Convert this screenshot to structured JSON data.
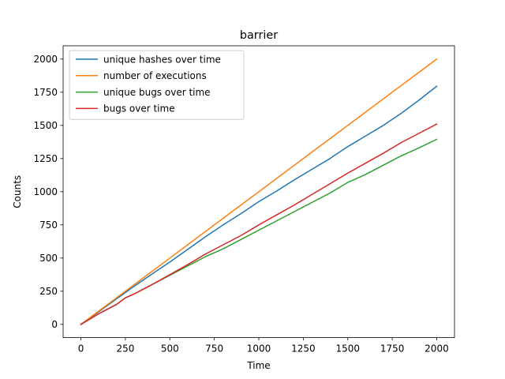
{
  "chart_data": {
    "type": "line",
    "title": "barrier",
    "xlabel": "Time",
    "ylabel": "Counts",
    "xlim": [
      -100,
      2100
    ],
    "ylim": [
      -100,
      2100
    ],
    "xticks": [
      0,
      250,
      500,
      750,
      1000,
      1250,
      1500,
      1750,
      2000
    ],
    "yticks": [
      0,
      250,
      500,
      750,
      1000,
      1250,
      1500,
      1750,
      2000
    ],
    "xtick_labels": [
      "0",
      "250",
      "500",
      "750",
      "1000",
      "1250",
      "1500",
      "1750",
      "2000"
    ],
    "ytick_labels": [
      "0",
      "250",
      "500",
      "750",
      "1000",
      "1250",
      "1500",
      "1750",
      "2000"
    ],
    "grid": false,
    "legend_position": "upper-left",
    "x": [
      0,
      100,
      200,
      250,
      300,
      400,
      500,
      600,
      700,
      800,
      900,
      1000,
      1100,
      1200,
      1300,
      1400,
      1500,
      1600,
      1700,
      1800,
      1900,
      2000
    ],
    "series": [
      {
        "name": "unique hashes over time",
        "color": "#1f77b4",
        "values": [
          0,
          95,
          192,
          240,
          288,
          380,
          470,
          565,
          660,
          750,
          835,
          925,
          1005,
          1090,
          1170,
          1250,
          1340,
          1420,
          1500,
          1590,
          1690,
          1795
        ]
      },
      {
        "name": "number of executions",
        "color": "#ff7f0e",
        "values": [
          0,
          100,
          200,
          250,
          300,
          400,
          500,
          600,
          700,
          800,
          900,
          1000,
          1100,
          1200,
          1300,
          1400,
          1500,
          1600,
          1700,
          1800,
          1900,
          2000
        ]
      },
      {
        "name": "unique bugs over time",
        "color": "#2ca02c",
        "values": [
          0,
          80,
          150,
          200,
          230,
          300,
          370,
          440,
          510,
          570,
          640,
          710,
          780,
          850,
          920,
          990,
          1070,
          1130,
          1200,
          1270,
          1330,
          1395
        ]
      },
      {
        "name": "bugs over time",
        "color": "#d62728",
        "values": [
          0,
          80,
          150,
          200,
          230,
          300,
          375,
          450,
          530,
          600,
          670,
          750,
          825,
          900,
          980,
          1060,
          1140,
          1215,
          1290,
          1370,
          1440,
          1510
        ]
      }
    ]
  }
}
